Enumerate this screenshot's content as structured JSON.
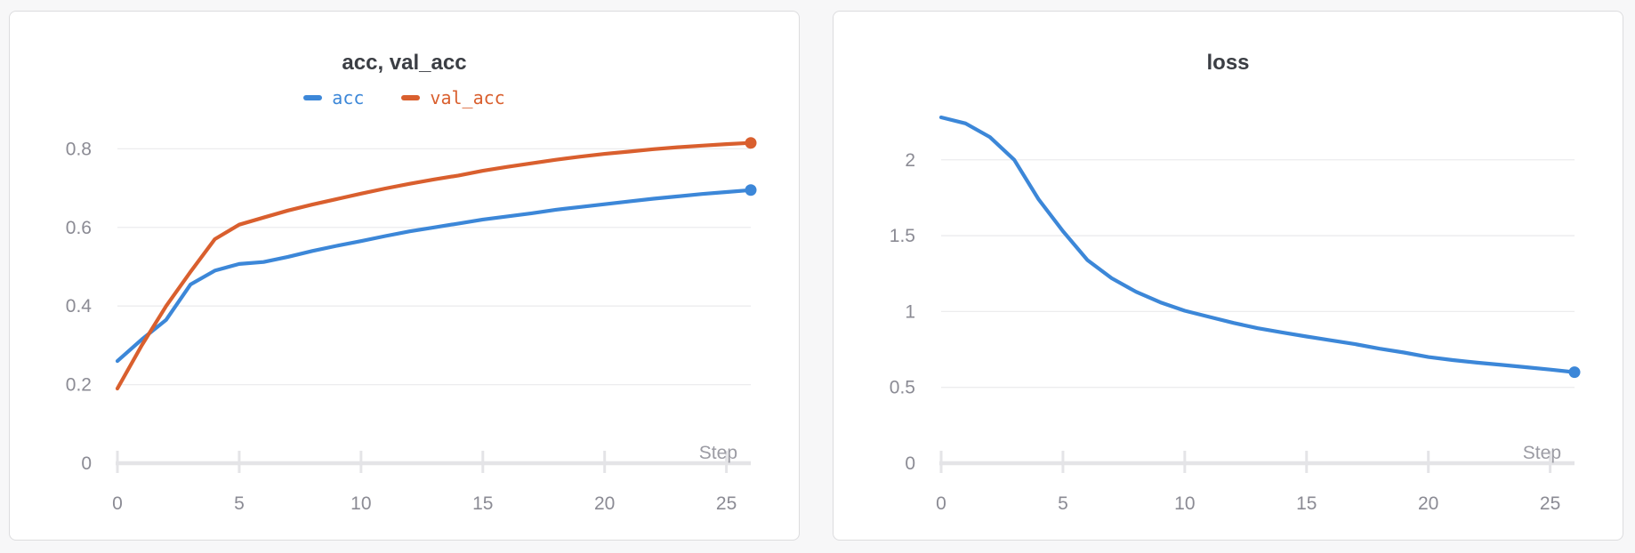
{
  "chart_data": [
    {
      "type": "line",
      "title": "acc, val_acc",
      "xlabel": "Step",
      "legend_position": "top",
      "grid": true,
      "end_markers": true,
      "xlim": [
        0,
        26
      ],
      "ylim": [
        0,
        0.88
      ],
      "x": [
        0,
        1,
        2,
        3,
        4,
        5,
        6,
        7,
        8,
        9,
        10,
        11,
        12,
        13,
        14,
        15,
        16,
        17,
        18,
        19,
        20,
        21,
        22,
        23,
        24,
        25,
        26
      ],
      "xticks": [
        {
          "v": 0,
          "label": "0"
        },
        {
          "v": 5,
          "label": "5"
        },
        {
          "v": 10,
          "label": "10"
        },
        {
          "v": 15,
          "label": "15"
        },
        {
          "v": 20,
          "label": "20"
        },
        {
          "v": 25,
          "label": "25"
        }
      ],
      "yticks": [
        {
          "v": 0,
          "label": "0"
        },
        {
          "v": 0.2,
          "label": "0.2"
        },
        {
          "v": 0.4,
          "label": "0.4"
        },
        {
          "v": 0.6,
          "label": "0.6"
        },
        {
          "v": 0.8,
          "label": "0.8"
        }
      ],
      "series": [
        {
          "name": "acc",
          "color": "#3c87d8",
          "values": [
            0.26,
            0.315,
            0.365,
            0.455,
            0.49,
            0.507,
            0.512,
            0.525,
            0.54,
            0.553,
            0.565,
            0.578,
            0.59,
            0.6,
            0.61,
            0.62,
            0.628,
            0.636,
            0.645,
            0.652,
            0.659,
            0.666,
            0.673,
            0.679,
            0.685,
            0.69,
            0.695
          ]
        },
        {
          "name": "val_acc",
          "color": "#d95f2e",
          "values": [
            0.19,
            0.3,
            0.4,
            0.487,
            0.57,
            0.607,
            0.625,
            0.643,
            0.658,
            0.672,
            0.686,
            0.699,
            0.711,
            0.722,
            0.732,
            0.744,
            0.754,
            0.763,
            0.772,
            0.78,
            0.787,
            0.793,
            0.799,
            0.804,
            0.808,
            0.812,
            0.815
          ]
        }
      ]
    },
    {
      "type": "line",
      "title": "loss",
      "xlabel": "Step",
      "legend_position": "none",
      "grid": true,
      "end_markers": true,
      "xlim": [
        0,
        26
      ],
      "ylim": [
        0,
        2.28
      ],
      "x": [
        0,
        1,
        2,
        3,
        4,
        5,
        6,
        7,
        8,
        9,
        10,
        11,
        12,
        13,
        14,
        15,
        16,
        17,
        18,
        19,
        20,
        21,
        22,
        23,
        24,
        25,
        26
      ],
      "xticks": [
        {
          "v": 0,
          "label": "0"
        },
        {
          "v": 5,
          "label": "5"
        },
        {
          "v": 10,
          "label": "10"
        },
        {
          "v": 15,
          "label": "15"
        },
        {
          "v": 20,
          "label": "20"
        },
        {
          "v": 25,
          "label": "25"
        }
      ],
      "yticks": [
        {
          "v": 0,
          "label": "0"
        },
        {
          "v": 0.5,
          "label": "0.5"
        },
        {
          "v": 1,
          "label": "1"
        },
        {
          "v": 1.5,
          "label": "1.5"
        },
        {
          "v": 2,
          "label": "2"
        }
      ],
      "series": [
        {
          "name": "loss",
          "color": "#3c87d8",
          "values": [
            2.28,
            2.24,
            2.15,
            2.0,
            1.74,
            1.53,
            1.34,
            1.22,
            1.13,
            1.06,
            1.005,
            0.965,
            0.925,
            0.89,
            0.862,
            0.835,
            0.81,
            0.785,
            0.755,
            0.73,
            0.7,
            0.68,
            0.663,
            0.648,
            0.633,
            0.617,
            0.6
          ]
        }
      ]
    }
  ]
}
